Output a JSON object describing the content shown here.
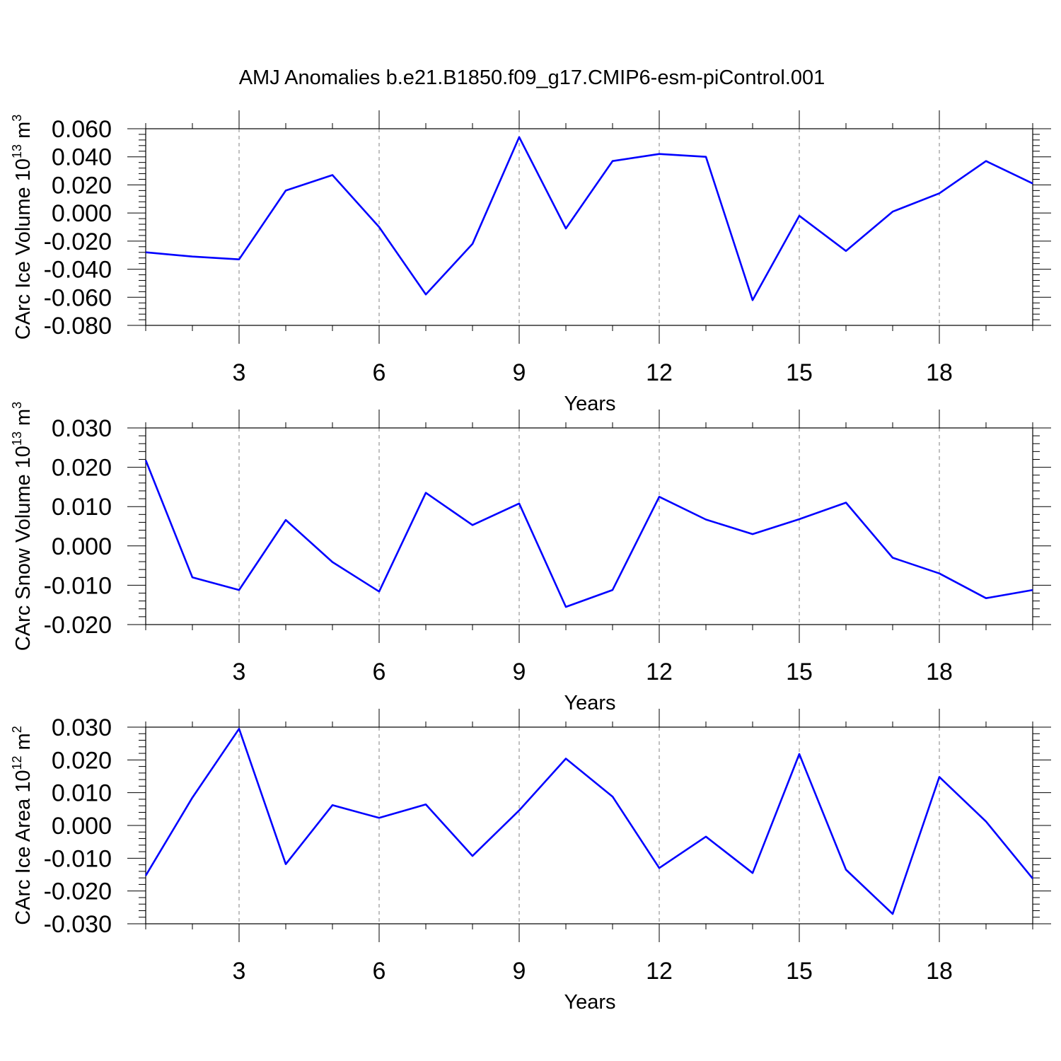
{
  "title": "AMJ Anomalies b.e21.B1850.f09_g17.CMIP6-esm-piControl.001",
  "colors": {
    "line": "#0000ff",
    "grid": "#808080",
    "axis": "#000000"
  },
  "chart_data": [
    {
      "type": "line",
      "xlabel": "Years",
      "ylabel": {
        "prefix": "CArc Ice Volume 10",
        "exp": "13",
        "unit": " m",
        "unit_exp": "3"
      },
      "xlim": [
        1,
        20
      ],
      "ylim": [
        -0.08,
        0.06
      ],
      "xticks": [
        3,
        6,
        9,
        12,
        15,
        18
      ],
      "xticklabels": [
        "3",
        "6",
        "9",
        "12",
        "15",
        "18"
      ],
      "yticks": [
        -0.08,
        -0.06,
        -0.04,
        -0.02,
        0.0,
        0.02,
        0.04,
        0.06
      ],
      "yticklabels": [
        "-0.080",
        "-0.060",
        "-0.040",
        "-0.020",
        "0.000",
        "0.020",
        "0.040",
        "0.060"
      ],
      "grid": "vertical dashed at major x ticks",
      "x": [
        1,
        2,
        3,
        4,
        5,
        6,
        7,
        8,
        9,
        10,
        11,
        12,
        13,
        14,
        15,
        16,
        17,
        18,
        19,
        20
      ],
      "values": [
        -0.028,
        -0.031,
        -0.033,
        0.016,
        0.027,
        -0.01,
        -0.058,
        -0.022,
        0.054,
        -0.011,
        0.037,
        0.042,
        0.04,
        -0.062,
        -0.002,
        -0.027,
        0.001,
        0.014,
        0.037,
        0.021
      ]
    },
    {
      "type": "line",
      "xlabel": "Years",
      "ylabel": {
        "prefix": "CArc Snow Volume 10",
        "exp": "13",
        "unit": " m",
        "unit_exp": "3"
      },
      "xlim": [
        1,
        20
      ],
      "ylim": [
        -0.02,
        0.03
      ],
      "xticks": [
        3,
        6,
        9,
        12,
        15,
        18
      ],
      "xticklabels": [
        "3",
        "6",
        "9",
        "12",
        "15",
        "18"
      ],
      "yticks": [
        -0.02,
        -0.01,
        0.0,
        0.01,
        0.02,
        0.03
      ],
      "yticklabels": [
        "-0.020",
        "-0.010",
        "0.000",
        "0.010",
        "0.020",
        "0.030"
      ],
      "grid": "vertical dashed at major x ticks",
      "x": [
        1,
        2,
        3,
        4,
        5,
        6,
        7,
        8,
        9,
        10,
        11,
        12,
        13,
        14,
        15,
        16,
        17,
        18,
        19,
        20
      ],
      "values": [
        0.0218,
        -0.008,
        -0.0112,
        0.0066,
        -0.0041,
        -0.0116,
        0.0135,
        0.0053,
        0.0108,
        -0.0155,
        -0.0112,
        0.0125,
        0.0067,
        0.003,
        0.0068,
        0.011,
        -0.003,
        -0.007,
        -0.0133,
        -0.0112
      ]
    },
    {
      "type": "line",
      "xlabel": "Years",
      "ylabel": {
        "prefix": "CArc Ice Area 10",
        "exp": "12",
        "unit": " m",
        "unit_exp": "2"
      },
      "xlim": [
        1,
        20
      ],
      "ylim": [
        -0.03,
        0.03
      ],
      "xticks": [
        3,
        6,
        9,
        12,
        15,
        18
      ],
      "xticklabels": [
        "3",
        "6",
        "9",
        "12",
        "15",
        "18"
      ],
      "yticks": [
        -0.03,
        -0.02,
        -0.01,
        0.0,
        0.01,
        0.02,
        0.03
      ],
      "yticklabels": [
        "-0.030",
        "-0.020",
        "-0.010",
        "0.000",
        "0.010",
        "0.020",
        "0.030"
      ],
      "grid": "vertical dashed at major x ticks",
      "x": [
        1,
        2,
        3,
        4,
        5,
        6,
        7,
        8,
        9,
        10,
        11,
        12,
        13,
        14,
        15,
        16,
        17,
        18,
        19,
        20
      ],
      "values": [
        -0.0153,
        0.0085,
        0.0295,
        -0.0118,
        0.0062,
        0.0023,
        0.0064,
        -0.0093,
        0.0046,
        0.0204,
        0.0088,
        -0.013,
        -0.0034,
        -0.0145,
        0.0218,
        -0.0135,
        -0.027,
        0.0148,
        0.0012,
        -0.0162
      ]
    }
  ]
}
